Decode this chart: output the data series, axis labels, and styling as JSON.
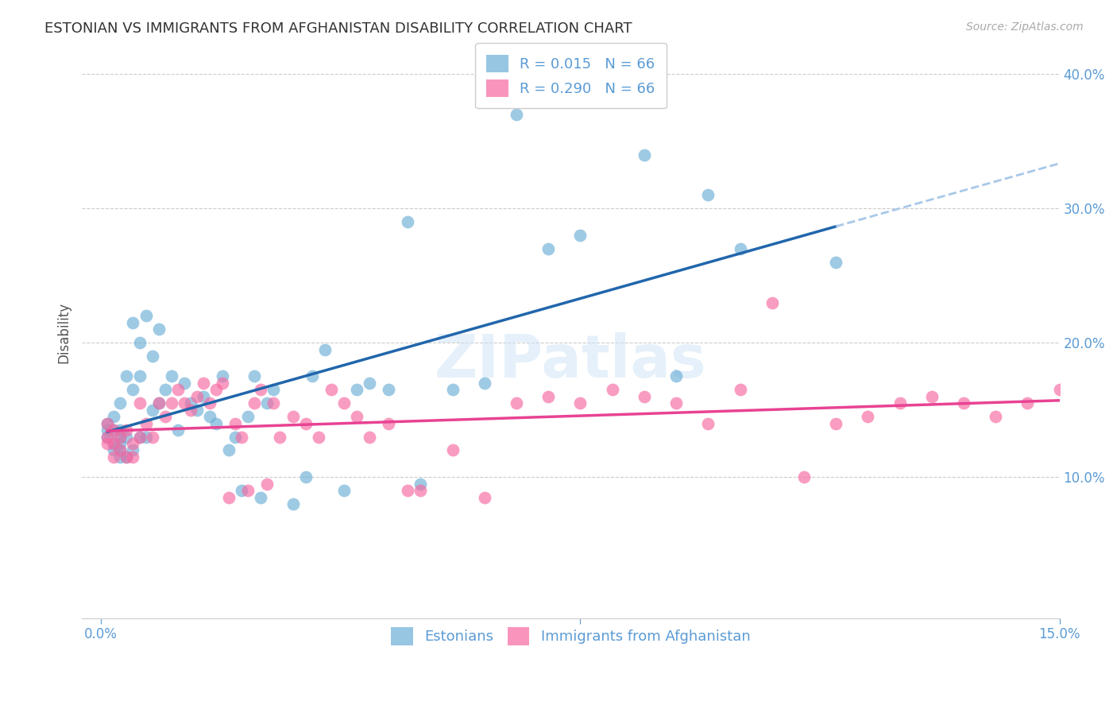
{
  "title": "ESTONIAN VS IMMIGRANTS FROM AFGHANISTAN DISABILITY CORRELATION CHART",
  "source": "Source: ZipAtlas.com",
  "ylabel": "Disability",
  "watermark": "ZIPatlas",
  "xlim": [
    0.0,
    0.15
  ],
  "ylim": [
    -0.005,
    0.42
  ],
  "ytick_vals": [
    0.1,
    0.2,
    0.3,
    0.4
  ],
  "ytick_labels": [
    "10.0%",
    "20.0%",
    "30.0%",
    "40.0%"
  ],
  "group1_color": "#6baed6",
  "group2_color": "#f768a1",
  "line1_color": "#2166ac",
  "line2_color": "#e84393",
  "line1_dashed_color": "#a8c8e8",
  "axis_color": "#5b9bd5",
  "grid_color": "#cccccc",
  "title_color": "#333333",
  "legend1_label": "R = 0.015   N = 66",
  "legend2_label": "R = 0.290   N = 66",
  "bottom_legend1": "Estonians",
  "bottom_legend2": "Immigrants from Afghanistan",
  "group1_x": [
    0.001,
    0.001,
    0.001,
    0.002,
    0.002,
    0.002,
    0.002,
    0.003,
    0.003,
    0.003,
    0.003,
    0.003,
    0.003,
    0.004,
    0.004,
    0.004,
    0.005,
    0.005,
    0.005,
    0.006,
    0.006,
    0.006,
    0.007,
    0.007,
    0.008,
    0.008,
    0.009,
    0.009,
    0.01,
    0.011,
    0.012,
    0.013,
    0.014,
    0.015,
    0.016,
    0.017,
    0.018,
    0.019,
    0.02,
    0.021,
    0.022,
    0.023,
    0.024,
    0.025,
    0.026,
    0.027,
    0.03,
    0.032,
    0.033,
    0.035,
    0.038,
    0.04,
    0.042,
    0.045,
    0.048,
    0.05,
    0.055,
    0.06,
    0.065,
    0.07,
    0.075,
    0.085,
    0.09,
    0.095,
    0.1,
    0.115
  ],
  "group1_y": [
    0.13,
    0.135,
    0.14,
    0.12,
    0.125,
    0.135,
    0.145,
    0.115,
    0.12,
    0.125,
    0.13,
    0.135,
    0.155,
    0.115,
    0.13,
    0.175,
    0.12,
    0.165,
    0.215,
    0.13,
    0.175,
    0.2,
    0.13,
    0.22,
    0.15,
    0.19,
    0.155,
    0.21,
    0.165,
    0.175,
    0.135,
    0.17,
    0.155,
    0.15,
    0.16,
    0.145,
    0.14,
    0.175,
    0.12,
    0.13,
    0.09,
    0.145,
    0.175,
    0.085,
    0.155,
    0.165,
    0.08,
    0.1,
    0.175,
    0.195,
    0.09,
    0.165,
    0.17,
    0.165,
    0.29,
    0.095,
    0.165,
    0.17,
    0.37,
    0.27,
    0.28,
    0.34,
    0.175,
    0.31,
    0.27,
    0.26
  ],
  "group2_x": [
    0.001,
    0.001,
    0.001,
    0.002,
    0.002,
    0.002,
    0.003,
    0.003,
    0.004,
    0.004,
    0.005,
    0.005,
    0.006,
    0.006,
    0.007,
    0.008,
    0.009,
    0.01,
    0.011,
    0.012,
    0.013,
    0.014,
    0.015,
    0.016,
    0.017,
    0.018,
    0.019,
    0.02,
    0.021,
    0.022,
    0.023,
    0.024,
    0.025,
    0.026,
    0.027,
    0.028,
    0.03,
    0.032,
    0.034,
    0.036,
    0.038,
    0.04,
    0.042,
    0.045,
    0.048,
    0.05,
    0.055,
    0.06,
    0.065,
    0.07,
    0.075,
    0.08,
    0.085,
    0.09,
    0.095,
    0.1,
    0.105,
    0.11,
    0.115,
    0.12,
    0.125,
    0.13,
    0.135,
    0.14,
    0.145,
    0.15
  ],
  "group2_y": [
    0.125,
    0.13,
    0.14,
    0.115,
    0.125,
    0.135,
    0.12,
    0.13,
    0.115,
    0.135,
    0.115,
    0.125,
    0.13,
    0.155,
    0.14,
    0.13,
    0.155,
    0.145,
    0.155,
    0.165,
    0.155,
    0.15,
    0.16,
    0.17,
    0.155,
    0.165,
    0.17,
    0.085,
    0.14,
    0.13,
    0.09,
    0.155,
    0.165,
    0.095,
    0.155,
    0.13,
    0.145,
    0.14,
    0.13,
    0.165,
    0.155,
    0.145,
    0.13,
    0.14,
    0.09,
    0.09,
    0.12,
    0.085,
    0.155,
    0.16,
    0.155,
    0.165,
    0.16,
    0.155,
    0.14,
    0.165,
    0.23,
    0.1,
    0.14,
    0.145,
    0.155,
    0.16,
    0.155,
    0.145,
    0.155,
    0.165
  ]
}
